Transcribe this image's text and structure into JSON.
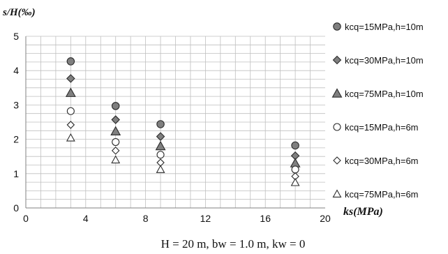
{
  "chart_data": {
    "type": "scatter",
    "title": "",
    "ylabel": "s/H(‰)",
    "xlabel": "ks(MPa)",
    "caption": "H = 20 m, bw = 1.0 m, kw = 0",
    "xlim": [
      0,
      20
    ],
    "ylim": [
      0,
      5
    ],
    "xticks": [
      0,
      4,
      8,
      12,
      16,
      20
    ],
    "yticks": [
      0,
      1,
      2,
      3,
      4,
      5
    ],
    "grid": true,
    "legend_position": "right",
    "series": [
      {
        "name": "kcq=15MPa,h=10m",
        "marker": "circle",
        "filled": true,
        "x": [
          3,
          6,
          9,
          18
        ],
        "y": [
          4.27,
          2.97,
          2.44,
          1.82
        ]
      },
      {
        "name": "kcq=30MPa,h=10m",
        "marker": "diamond",
        "filled": true,
        "x": [
          3,
          6,
          9,
          18
        ],
        "y": [
          3.77,
          2.57,
          2.08,
          1.52
        ]
      },
      {
        "name": "kcq=75MPa,h=10m",
        "marker": "triangle",
        "filled": true,
        "x": [
          3,
          6,
          9,
          18
        ],
        "y": [
          3.35,
          2.23,
          1.8,
          1.3
        ]
      },
      {
        "name": "kcq=15MPa,h=6m",
        "marker": "circle",
        "filled": false,
        "x": [
          3,
          6,
          9,
          18
        ],
        "y": [
          2.82,
          1.92,
          1.55,
          1.12
        ]
      },
      {
        "name": "kcq=30MPa,h=6m",
        "marker": "diamond",
        "filled": false,
        "x": [
          3,
          6,
          9,
          18
        ],
        "y": [
          2.42,
          1.67,
          1.32,
          0.92
        ]
      },
      {
        "name": "kcq=75MPa,h=6m",
        "marker": "triangle",
        "filled": false,
        "x": [
          3,
          6,
          9,
          18
        ],
        "y": [
          2.04,
          1.4,
          1.12,
          0.74
        ]
      }
    ],
    "colors": {
      "filled": "#7f7f7f",
      "stroke": "#2b2b2b",
      "grid": "#bfbfbf",
      "axis": "#808080"
    }
  }
}
